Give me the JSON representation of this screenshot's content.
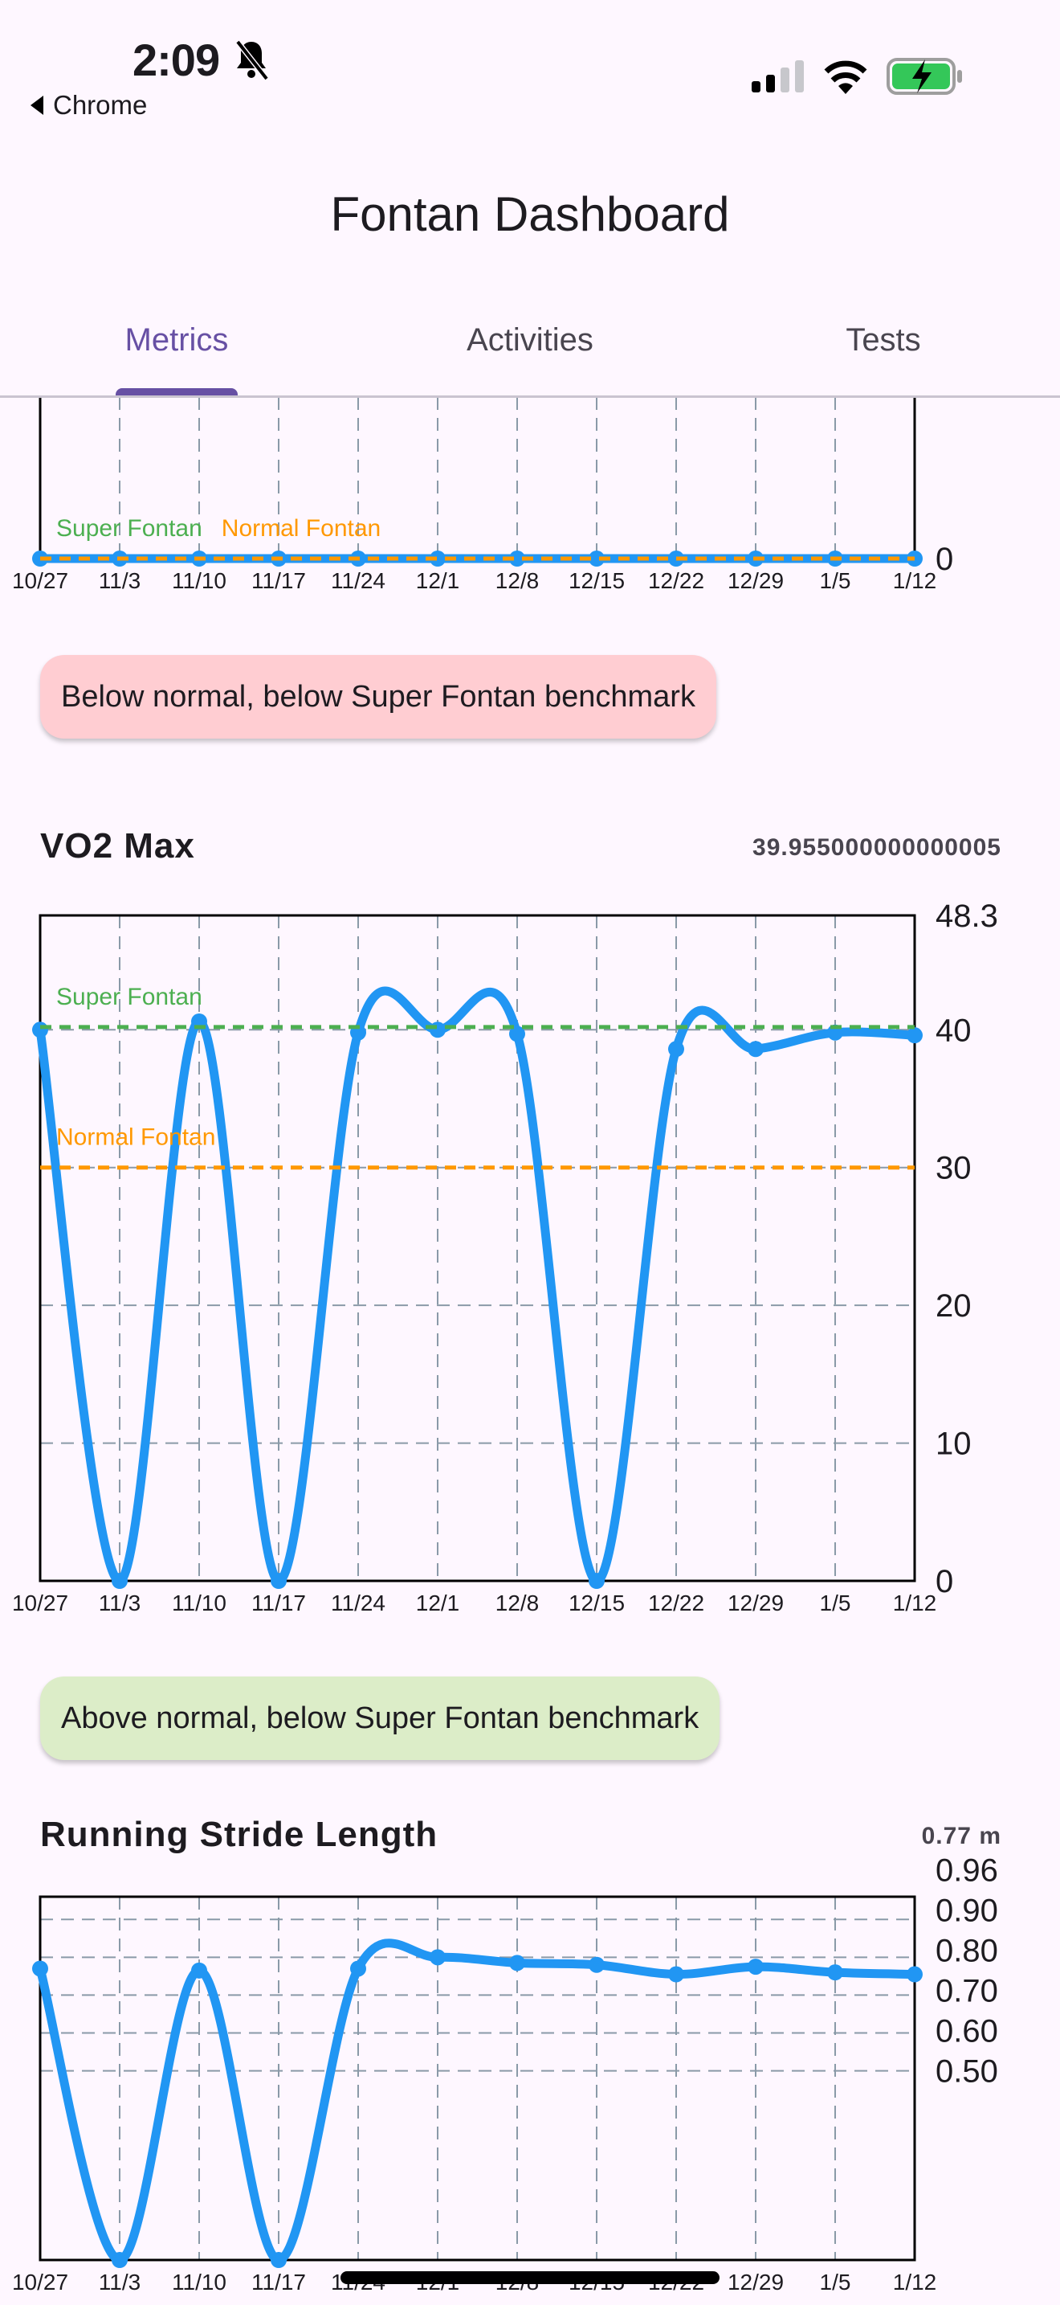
{
  "status_bar": {
    "time": "2:09",
    "back_label": "Chrome",
    "icons": [
      "bell-slash-icon",
      "cellular-signal-icon",
      "wifi-icon",
      "battery-charging-icon"
    ]
  },
  "header": {
    "title": "Fontan Dashboard"
  },
  "tabs": [
    {
      "label": "Metrics",
      "active": true
    },
    {
      "label": "Activities",
      "active": false
    },
    {
      "label": "Tests",
      "active": false
    }
  ],
  "colors": {
    "accent": "#6750a4",
    "series": "#2196f3",
    "super_fontan": "#4caf50",
    "normal_fontan": "#ff9800",
    "badge_below": "#ffcdd2",
    "badge_above": "#dcedc8",
    "background": "#fef7ff"
  },
  "metrics": [
    {
      "status": "Below normal, below Super Fontan benchmark"
    },
    {
      "title": "VO2 Max",
      "value": "39.955000000000005",
      "status": "Above normal, below Super Fontan benchmark"
    },
    {
      "title": "Running Stride Length",
      "value": "0.77 m"
    }
  ],
  "chart_data": [
    {
      "type": "line",
      "x": [
        "10/27",
        "11/3",
        "11/10",
        "11/17",
        "11/24",
        "12/1",
        "12/8",
        "12/15",
        "12/22",
        "12/29",
        "1/5",
        "1/12"
      ],
      "values": [
        0,
        0,
        0,
        0,
        0,
        0,
        0,
        0,
        0,
        0,
        0,
        0
      ],
      "yticks": [
        "0"
      ],
      "ytick_values": [
        0
      ],
      "ylim": [
        0,
        1
      ],
      "benchmarks": [
        {
          "name": "Super Fontan",
          "value": 0,
          "color": "#4caf50"
        },
        {
          "name": "Normal Fontan",
          "value": 0,
          "color": "#ff9800"
        }
      ],
      "grid": true
    },
    {
      "type": "line",
      "x": [
        "10/27",
        "11/3",
        "11/10",
        "11/17",
        "11/24",
        "12/1",
        "12/8",
        "12/15",
        "12/22",
        "12/29",
        "1/5",
        "1/12"
      ],
      "values": [
        40.0,
        0,
        40.6,
        0,
        39.8,
        40.0,
        39.7,
        0,
        38.6,
        38.6,
        39.8,
        39.6
      ],
      "yticks": [
        "0",
        "10",
        "20",
        "30",
        "40",
        "48.3"
      ],
      "ytick_values": [
        0,
        10,
        20,
        30,
        40,
        48.3
      ],
      "ylim": [
        0,
        48.3
      ],
      "benchmarks": [
        {
          "name": "Super Fontan",
          "value": 40.2,
          "color": "#4caf50"
        },
        {
          "name": "Normal Fontan",
          "value": 30,
          "color": "#ff9800"
        }
      ],
      "grid": true
    },
    {
      "type": "line",
      "x": [
        "10/27",
        "11/3",
        "11/10",
        "11/17",
        "11/24",
        "12/1",
        "12/8",
        "12/15",
        "12/22",
        "12/29",
        "1/5",
        "1/12"
      ],
      "values": [
        0.77,
        0,
        0.765,
        0,
        0.77,
        0.8,
        0.785,
        0.78,
        0.755,
        0.775,
        0.76,
        0.755
      ],
      "yticks": [
        "0.50",
        "0.60",
        "0.70",
        "0.80",
        "0.90",
        "0.96"
      ],
      "ytick_values": [
        0.5,
        0.6,
        0.7,
        0.8,
        0.9,
        0.96
      ],
      "ylim": [
        0,
        0.96
      ],
      "benchmarks": [],
      "grid": true
    }
  ]
}
